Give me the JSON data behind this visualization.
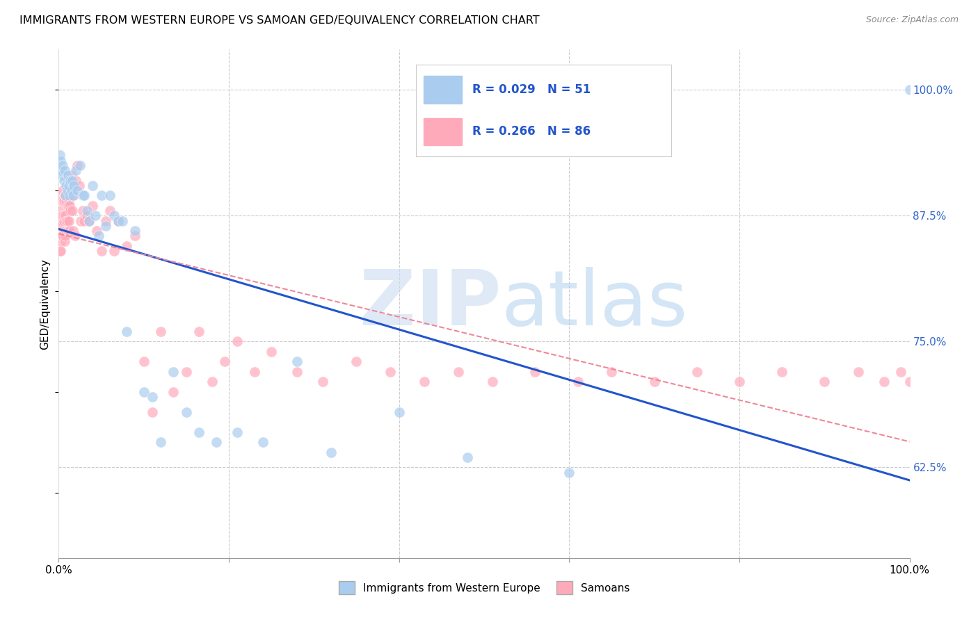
{
  "title": "IMMIGRANTS FROM WESTERN EUROPE VS SAMOAN GED/EQUIVALENCY CORRELATION CHART",
  "source": "Source: ZipAtlas.com",
  "ylabel": "GED/Equivalency",
  "ytick_labels": [
    "100.0%",
    "87.5%",
    "75.0%",
    "62.5%"
  ],
  "ytick_values": [
    1.0,
    0.875,
    0.75,
    0.625
  ],
  "xlim": [
    0.0,
    1.0
  ],
  "ylim": [
    0.535,
    1.04
  ],
  "legend_blue_r": "0.029",
  "legend_blue_n": "51",
  "legend_pink_r": "0.266",
  "legend_pink_n": "86",
  "legend_label_blue": "Immigrants from Western Europe",
  "legend_label_pink": "Samoans",
  "blue_color": "#aaccee",
  "pink_color": "#ffaabb",
  "trend_blue_color": "#2255cc",
  "trend_pink_color": "#ee8899",
  "blue_points_x": [
    0.001,
    0.002,
    0.003,
    0.004,
    0.005,
    0.006,
    0.007,
    0.008,
    0.009,
    0.01,
    0.011,
    0.012,
    0.013,
    0.014,
    0.015,
    0.016,
    0.017,
    0.018,
    0.02,
    0.022,
    0.025,
    0.028,
    0.03,
    0.033,
    0.036,
    0.04,
    0.043,
    0.047,
    0.05,
    0.055,
    0.06,
    0.065,
    0.07,
    0.075,
    0.08,
    0.09,
    0.1,
    0.11,
    0.12,
    0.135,
    0.15,
    0.165,
    0.185,
    0.21,
    0.24,
    0.28,
    0.32,
    0.4,
    0.48,
    0.6,
    1.0
  ],
  "blue_points_y": [
    0.935,
    0.93,
    0.92,
    0.915,
    0.925,
    0.91,
    0.92,
    0.895,
    0.905,
    0.9,
    0.915,
    0.905,
    0.895,
    0.91,
    0.9,
    0.91,
    0.895,
    0.905,
    0.92,
    0.9,
    0.925,
    0.895,
    0.895,
    0.88,
    0.87,
    0.905,
    0.875,
    0.855,
    0.895,
    0.865,
    0.895,
    0.875,
    0.87,
    0.87,
    0.76,
    0.86,
    0.7,
    0.695,
    0.65,
    0.72,
    0.68,
    0.66,
    0.65,
    0.66,
    0.65,
    0.73,
    0.64,
    0.68,
    0.635,
    0.62,
    1.0
  ],
  "pink_points_x": [
    0.001,
    0.001,
    0.001,
    0.002,
    0.002,
    0.002,
    0.003,
    0.003,
    0.003,
    0.004,
    0.004,
    0.004,
    0.005,
    0.005,
    0.005,
    0.006,
    0.006,
    0.007,
    0.007,
    0.007,
    0.008,
    0.008,
    0.008,
    0.009,
    0.009,
    0.01,
    0.01,
    0.011,
    0.011,
    0.012,
    0.012,
    0.013,
    0.013,
    0.014,
    0.015,
    0.016,
    0.017,
    0.018,
    0.019,
    0.02,
    0.022,
    0.024,
    0.026,
    0.028,
    0.03,
    0.033,
    0.036,
    0.04,
    0.045,
    0.05,
    0.055,
    0.06,
    0.065,
    0.07,
    0.08,
    0.09,
    0.1,
    0.11,
    0.12,
    0.135,
    0.15,
    0.165,
    0.18,
    0.195,
    0.21,
    0.23,
    0.25,
    0.28,
    0.31,
    0.35,
    0.39,
    0.43,
    0.47,
    0.51,
    0.56,
    0.61,
    0.65,
    0.7,
    0.75,
    0.8,
    0.85,
    0.9,
    0.94,
    0.97,
    0.99,
    1.0
  ],
  "pink_points_y": [
    0.87,
    0.855,
    0.84,
    0.88,
    0.865,
    0.84,
    0.895,
    0.87,
    0.85,
    0.89,
    0.875,
    0.855,
    0.9,
    0.875,
    0.855,
    0.89,
    0.87,
    0.895,
    0.875,
    0.85,
    0.895,
    0.875,
    0.855,
    0.89,
    0.87,
    0.895,
    0.87,
    0.885,
    0.86,
    0.89,
    0.87,
    0.885,
    0.86,
    0.88,
    0.915,
    0.88,
    0.86,
    0.895,
    0.855,
    0.91,
    0.925,
    0.905,
    0.87,
    0.88,
    0.87,
    0.875,
    0.87,
    0.885,
    0.86,
    0.84,
    0.87,
    0.88,
    0.84,
    0.87,
    0.845,
    0.855,
    0.73,
    0.68,
    0.76,
    0.7,
    0.72,
    0.76,
    0.71,
    0.73,
    0.75,
    0.72,
    0.74,
    0.72,
    0.71,
    0.73,
    0.72,
    0.71,
    0.72,
    0.71,
    0.72,
    0.71,
    0.72,
    0.71,
    0.72,
    0.71,
    0.72,
    0.71,
    0.72,
    0.71,
    0.72,
    0.71
  ]
}
